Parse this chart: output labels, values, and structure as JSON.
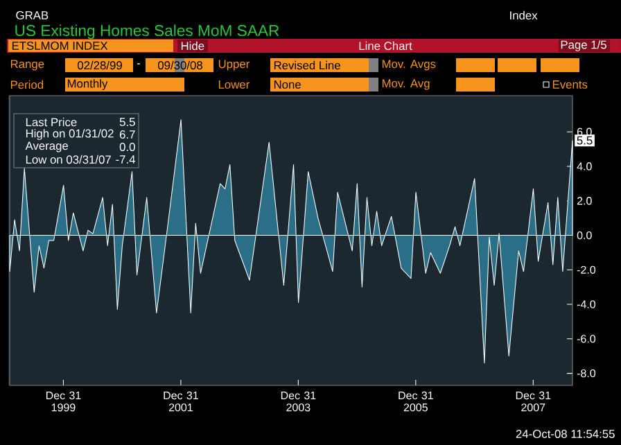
{
  "chart_data": {
    "type": "area",
    "title": "US Existing Homes Sales MoM SAAR",
    "series": [
      {
        "color": "#2a6e88",
        "x": [
          "1999-02",
          "1999-03",
          "1999-04",
          "1999-05",
          "1999-07",
          "1999-08",
          "1999-09",
          "1999-10",
          "1999-11",
          "2000-01",
          "2000-02",
          "2000-03",
          "2000-05",
          "2000-06",
          "2000-07",
          "2000-09",
          "2000-10",
          "2000-11",
          "2000-12",
          "2001-01",
          "2001-03",
          "2001-04",
          "2001-06",
          "2001-08",
          "2001-10",
          "2002-01",
          "2002-03",
          "2002-04",
          "2002-05",
          "2002-09",
          "2002-10",
          "2002-11",
          "2002-12",
          "2003-03",
          "2003-07",
          "2003-10",
          "2003-12",
          "2004-01",
          "2004-03",
          "2004-05",
          "2004-08",
          "2004-09",
          "2004-12",
          "2005-01",
          "2005-02",
          "2005-03",
          "2005-04",
          "2005-05",
          "2005-06",
          "2005-08",
          "2005-10",
          "2005-12",
          "2006-01",
          "2006-03",
          "2006-04",
          "2006-06",
          "2006-08",
          "2006-09",
          "2006-10",
          "2007-01",
          "2007-03",
          "2007-04",
          "2007-05",
          "2007-06",
          "2007-08",
          "2007-10",
          "2007-11",
          "2008-01",
          "2008-02",
          "2008-04",
          "2008-05",
          "2008-06",
          "2008-07",
          "2008-09"
        ],
        "values": [
          -2.1,
          0.9,
          -0.9,
          3.9,
          -3.3,
          -0.6,
          -1.9,
          -0.3,
          -0.3,
          2.9,
          -0.3,
          1.3,
          -0.9,
          0.3,
          0.1,
          2.2,
          -0.6,
          1.8,
          -4.3,
          -0.6,
          3.7,
          -2.3,
          2.2,
          -4.5,
          -0.1,
          6.7,
          -4.5,
          0.7,
          -2.2,
          3.0,
          2.7,
          4.1,
          -0.3,
          -2.6,
          5.4,
          -2.9,
          4.1,
          -3.9,
          3.7,
          1.0,
          -2.1,
          2.5,
          -0.9,
          3.0,
          -3.0,
          2.2,
          -0.6,
          1.4,
          -0.6,
          1.1,
          -1.9,
          -2.5,
          2.5,
          -2.2,
          -1.0,
          -2.2,
          -0.5,
          0.5,
          -0.6,
          3.3,
          -7.4,
          -0.1,
          -2.9,
          0.1,
          -7.0,
          -0.9,
          -2.1,
          2.7,
          -1.5,
          1.9,
          -1.7,
          2.2,
          -2.1,
          5.5
        ]
      }
    ],
    "xlim": [
      "1999-02",
      "2008-09"
    ],
    "ylim": [
      -8.7,
      8.1
    ],
    "xticks": [
      {
        "value": "1999-12-31",
        "label": "Dec 31 1999"
      },
      {
        "value": "2001-12-31",
        "label": "Dec 31 2001"
      },
      {
        "value": "2003-12-31",
        "label": "Dec 31 2003"
      },
      {
        "value": "2005-12-31",
        "label": "Dec 31 2005"
      },
      {
        "value": "2007-12-31",
        "label": "Dec 31 2007"
      }
    ],
    "yticks": [
      {
        "value": -8,
        "label": "-8.0"
      },
      {
        "value": -6,
        "label": "-6.0"
      },
      {
        "value": -4,
        "label": "-4.0"
      },
      {
        "value": -2,
        "label": "-2.0"
      },
      {
        "value": 0,
        "label": "0.0"
      },
      {
        "value": 2,
        "label": "2.0"
      },
      {
        "value": 4,
        "label": "4.0"
      },
      {
        "value": 6,
        "label": "6.0"
      }
    ],
    "legend": false,
    "annotations": [
      "GRAB",
      "Index",
      "ETSLMOM INDEX",
      "Hide",
      "Line Chart",
      "Page 1/5",
      "Range",
      "02/28/99",
      "-",
      "09/30/08",
      "Upper",
      "Revised Line",
      "Mov. Avgs",
      "Period",
      "Monthly",
      "Lower",
      "None",
      "Mov. Avg",
      "Events",
      "Last Price",
      "5.5",
      "High on 01/31/02",
      "6.7",
      "Average",
      "0.0",
      "Low on 03/31/07",
      "-7.4",
      "24-Oct-08 11:54:55",
      {
        "text": "5.5",
        "x": "2008-09",
        "y": 5.5
      }
    ]
  }
}
